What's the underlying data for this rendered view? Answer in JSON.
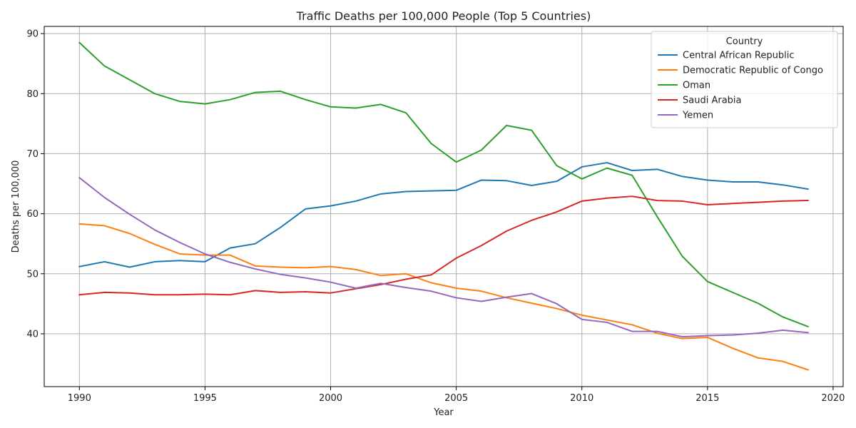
{
  "chart_data": {
    "type": "line",
    "title": "Traffic Deaths per 100,000 People (Top 5 Countries)",
    "xlabel": "Year",
    "ylabel": "Deaths per 100,000",
    "xlim": [
      1988.6,
      2020.4
    ],
    "ylim": [
      31.2,
      91.2
    ],
    "xticks": [
      1990,
      1995,
      2000,
      2005,
      2010,
      2015,
      2020
    ],
    "yticks": [
      40,
      50,
      60,
      70,
      80,
      90
    ],
    "grid": true,
    "legend": {
      "title": "Country",
      "placement": "top-right"
    },
    "x": [
      1990,
      1991,
      1992,
      1993,
      1994,
      1995,
      1996,
      1997,
      1998,
      1999,
      2000,
      2001,
      2002,
      2003,
      2004,
      2005,
      2006,
      2007,
      2008,
      2009,
      2010,
      2011,
      2012,
      2013,
      2014,
      2015,
      2016,
      2017,
      2018,
      2019
    ],
    "series": [
      {
        "name": "Central African Republic",
        "color": "#1f77b4",
        "values": [
          51.2,
          52.0,
          51.1,
          52.0,
          52.2,
          52.0,
          54.3,
          55.0,
          57.7,
          60.8,
          61.3,
          62.1,
          63.3,
          63.7,
          63.8,
          63.9,
          65.6,
          65.5,
          64.7,
          65.4,
          67.8,
          68.5,
          67.2,
          67.4,
          66.2,
          65.6,
          65.3,
          65.3,
          64.8,
          64.1
        ]
      },
      {
        "name": "Democratic Republic of Congo",
        "color": "#ff7f0e",
        "values": [
          58.3,
          58.0,
          56.7,
          54.9,
          53.3,
          53.1,
          53.1,
          51.3,
          51.1,
          51.0,
          51.2,
          50.7,
          49.7,
          50.0,
          48.5,
          47.6,
          47.1,
          46.0,
          45.1,
          44.2,
          43.1,
          42.3,
          41.5,
          40.1,
          39.2,
          39.4,
          37.6,
          36.0,
          35.4,
          34.0
        ]
      },
      {
        "name": "Oman",
        "color": "#2ca02c",
        "values": [
          88.5,
          84.6,
          82.3,
          80.0,
          78.7,
          78.3,
          79.0,
          80.2,
          80.4,
          79.0,
          77.8,
          77.6,
          78.2,
          76.8,
          71.7,
          68.6,
          70.6,
          74.7,
          73.9,
          68.0,
          65.8,
          67.6,
          66.4,
          59.5,
          52.9,
          48.7,
          46.9,
          45.1,
          42.8,
          41.2
        ]
      },
      {
        "name": "Saudi Arabia",
        "color": "#d62728",
        "values": [
          46.5,
          46.9,
          46.8,
          46.5,
          46.5,
          46.6,
          46.5,
          47.2,
          46.9,
          47.0,
          46.8,
          47.5,
          48.2,
          49.1,
          49.8,
          52.6,
          54.7,
          57.1,
          58.9,
          60.3,
          62.1,
          62.6,
          62.9,
          62.2,
          62.1,
          61.5,
          61.7,
          61.9,
          62.1,
          62.2
        ]
      },
      {
        "name": "Yemen",
        "color": "#9467bd",
        "values": [
          66.0,
          62.7,
          59.9,
          57.3,
          55.2,
          53.3,
          51.9,
          50.8,
          49.9,
          49.3,
          48.6,
          47.6,
          48.4,
          47.7,
          47.1,
          46.0,
          45.4,
          46.1,
          46.7,
          45.0,
          42.4,
          41.9,
          40.4,
          40.4,
          39.5,
          39.7,
          39.8,
          40.1,
          40.6,
          40.2
        ]
      }
    ]
  }
}
